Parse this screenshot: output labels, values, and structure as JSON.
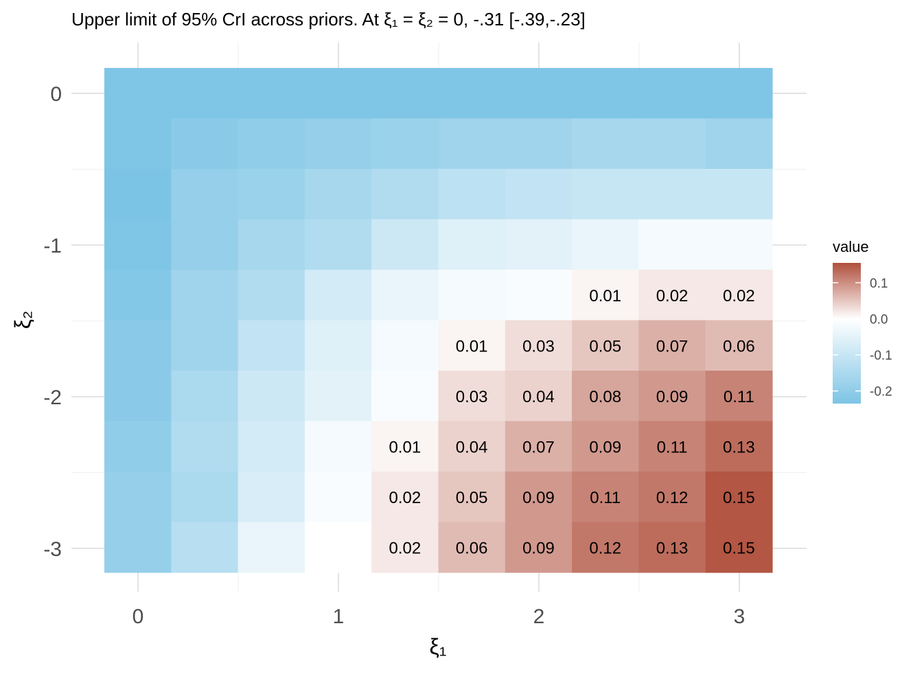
{
  "chart_data": {
    "type": "heatmap",
    "title": "Upper limit of 95% CrI across priors. At ξ₁ = ξ₂ = 0, -.31 [-.39,-.23]",
    "xlabel": "ξ₁",
    "ylabel": "ξ₂",
    "x": [
      0,
      0.333,
      0.667,
      1,
      1.333,
      1.667,
      2,
      2.333,
      2.667,
      3
    ],
    "y": [
      0,
      -0.333,
      -0.667,
      -1,
      -1.333,
      -1.667,
      -2,
      -2.333,
      -2.667,
      -3
    ],
    "xticks": [
      "0",
      "1",
      "2",
      "3"
    ],
    "yticks": [
      "0",
      "-1",
      "-2",
      "-3"
    ],
    "values": [
      [
        -0.23,
        -0.23,
        -0.23,
        -0.23,
        -0.23,
        -0.23,
        -0.23,
        -0.23,
        -0.23,
        -0.23
      ],
      [
        -0.23,
        -0.21,
        -0.2,
        -0.19,
        -0.18,
        -0.17,
        -0.17,
        -0.16,
        -0.16,
        -0.17
      ],
      [
        -0.24,
        -0.19,
        -0.18,
        -0.16,
        -0.14,
        -0.12,
        -0.11,
        -0.1,
        -0.1,
        -0.1
      ],
      [
        -0.23,
        -0.19,
        -0.16,
        -0.14,
        -0.09,
        -0.06,
        -0.05,
        -0.04,
        -0.02,
        -0.02
      ],
      [
        -0.22,
        -0.17,
        -0.14,
        -0.08,
        -0.04,
        -0.02,
        -0.01,
        0.01,
        0.02,
        0.02
      ],
      [
        -0.21,
        -0.17,
        -0.11,
        -0.06,
        -0.02,
        0.01,
        0.03,
        0.05,
        0.07,
        0.06
      ],
      [
        -0.21,
        -0.15,
        -0.09,
        -0.05,
        -0.01,
        0.03,
        0.04,
        0.08,
        0.09,
        0.11
      ],
      [
        -0.2,
        -0.14,
        -0.08,
        -0.02,
        0.01,
        0.04,
        0.07,
        0.09,
        0.11,
        0.13
      ],
      [
        -0.19,
        -0.15,
        -0.07,
        -0.01,
        0.02,
        0.05,
        0.09,
        0.11,
        0.12,
        0.15
      ],
      [
        -0.19,
        -0.13,
        -0.04,
        0.0,
        0.02,
        0.06,
        0.09,
        0.12,
        0.13,
        0.15
      ]
    ],
    "labels": [
      [
        "",
        "",
        "",
        "",
        "",
        "",
        "",
        "",
        "",
        ""
      ],
      [
        "",
        "",
        "",
        "",
        "",
        "",
        "",
        "",
        "",
        ""
      ],
      [
        "",
        "",
        "",
        "",
        "",
        "",
        "",
        "",
        "",
        ""
      ],
      [
        "",
        "",
        "",
        "",
        "",
        "",
        "",
        "",
        "",
        ""
      ],
      [
        "",
        "",
        "",
        "",
        "",
        "",
        "",
        "0.01",
        "0.02",
        "0.02"
      ],
      [
        "",
        "",
        "",
        "",
        "",
        "0.01",
        "0.03",
        "0.05",
        "0.07",
        "0.06"
      ],
      [
        "",
        "",
        "",
        "",
        "",
        "0.03",
        "0.04",
        "0.08",
        "0.09",
        "0.11"
      ],
      [
        "",
        "",
        "",
        "",
        "0.01",
        "0.04",
        "0.07",
        "0.09",
        "0.11",
        "0.13"
      ],
      [
        "",
        "",
        "",
        "",
        "0.02",
        "0.05",
        "0.09",
        "0.11",
        "0.12",
        "0.15"
      ],
      [
        "",
        "",
        "",
        "",
        "0.02",
        "0.06",
        "0.09",
        "0.12",
        "0.13",
        "0.15"
      ]
    ],
    "legend": {
      "title": "value",
      "position": "right",
      "ticks": [
        0.1,
        0.0,
        -0.1,
        -0.2
      ],
      "tick_labels": [
        "0.1",
        "0.0",
        "-0.1",
        "-0.2"
      ],
      "range": [
        -0.235,
        0.155
      ]
    },
    "colors": {
      "low": "#7cc4e5",
      "mid": "#ffffff",
      "high": "#b0503d"
    },
    "grid": true
  }
}
